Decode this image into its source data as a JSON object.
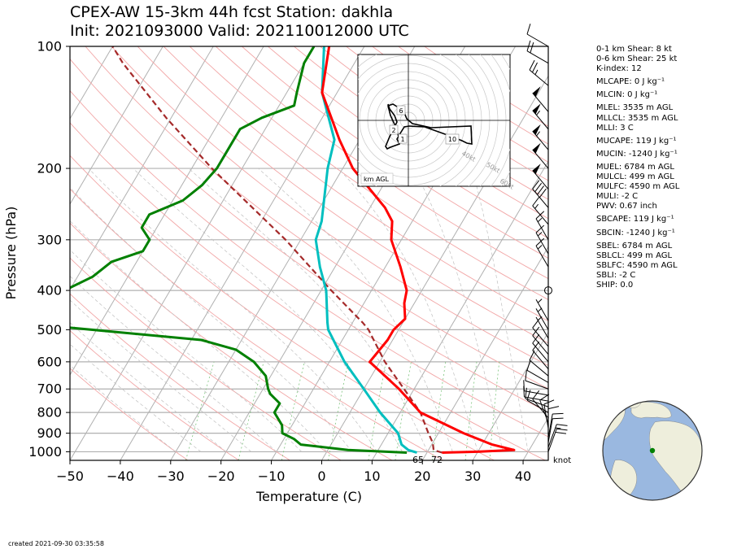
{
  "title_line1": "CPEX-AW 15-3km  44h fcst  Station: dakhla",
  "title_line2": "Init: 2021093000  Valid: 202110012000 UTC",
  "footer": "created 2021-09-30 03:35:58",
  "chart_data": {
    "type": "line",
    "subtype": "skew-t log-p diagram",
    "xlabel": "Temperature (C)",
    "ylabel": "Pressure (hPa)",
    "xlim": [
      -50,
      45
    ],
    "ylim": [
      1050,
      100
    ],
    "yscale": "log",
    "grid": true,
    "x_ticks": [
      -50,
      -40,
      -30,
      -20,
      -10,
      0,
      10,
      20,
      30,
      40
    ],
    "x_tick_labels": [
      "−50",
      "−40",
      "−30",
      "−20",
      "−10",
      "0",
      "10",
      "20",
      "30",
      "40"
    ],
    "y_ticks": [
      100,
      200,
      300,
      400,
      500,
      600,
      700,
      800,
      900,
      1000
    ],
    "series": [
      {
        "color": "#ff0000",
        "points": [
          [
            1005,
            23
          ],
          [
            1000,
            30
          ],
          [
            990,
            37
          ],
          [
            960,
            32
          ],
          [
            900,
            25
          ],
          [
            800,
            14
          ],
          [
            700,
            7
          ],
          [
            600,
            -2
          ],
          [
            530,
            -1
          ],
          [
            500,
            -1
          ],
          [
            470,
            0
          ],
          [
            430,
            -2
          ],
          [
            400,
            -3
          ],
          [
            350,
            -7
          ],
          [
            300,
            -12
          ],
          [
            270,
            -14
          ],
          [
            250,
            -17
          ],
          [
            200,
            -28
          ],
          [
            170,
            -34
          ],
          [
            130,
            -43
          ],
          [
            100,
            -47
          ]
        ]
      },
      {
        "color": "#00bfbf",
        "points": [
          [
            1005,
            18
          ],
          [
            990,
            16
          ],
          [
            960,
            14
          ],
          [
            900,
            12
          ],
          [
            800,
            6
          ],
          [
            700,
            0
          ],
          [
            600,
            -7
          ],
          [
            500,
            -14
          ],
          [
            480,
            -15
          ],
          [
            400,
            -19
          ],
          [
            350,
            -23
          ],
          [
            300,
            -27
          ],
          [
            270,
            -28
          ],
          [
            200,
            -33
          ],
          [
            170,
            -35
          ],
          [
            130,
            -43
          ],
          [
            100,
            -48
          ]
        ]
      },
      {
        "color": "#008000",
        "points": [
          [
            1005,
            16
          ],
          [
            990,
            4
          ],
          [
            960,
            -6
          ],
          [
            930,
            -8
          ],
          [
            900,
            -11
          ],
          [
            860,
            -12
          ],
          [
            800,
            -15
          ],
          [
            760,
            -15
          ],
          [
            720,
            -18
          ],
          [
            700,
            -19
          ],
          [
            650,
            -21
          ],
          [
            600,
            -25
          ],
          [
            560,
            -30
          ],
          [
            530,
            -38
          ],
          [
            480,
            -77
          ],
          [
            460,
            -70
          ],
          [
            430,
            -70
          ],
          [
            400,
            -71
          ],
          [
            370,
            -67
          ],
          [
            340,
            -65
          ],
          [
            320,
            -60
          ],
          [
            300,
            -60
          ],
          [
            280,
            -63
          ],
          [
            260,
            -63
          ],
          [
            240,
            -58
          ],
          [
            220,
            -56
          ],
          [
            200,
            -55
          ],
          [
            180,
            -55
          ],
          [
            160,
            -55
          ],
          [
            150,
            -52
          ],
          [
            140,
            -47
          ],
          [
            130,
            -48
          ],
          [
            110,
            -50
          ],
          [
            100,
            -50
          ]
        ]
      },
      {
        "color": "#a52a2a",
        "dashed": true,
        "points": [
          [
            1005,
            23
          ],
          [
            990,
            21
          ],
          [
            950,
            20
          ],
          [
            900,
            18
          ],
          [
            800,
            14
          ],
          [
            700,
            8
          ],
          [
            600,
            1
          ],
          [
            500,
            -6
          ],
          [
            480,
            -8
          ],
          [
            400,
            -18
          ],
          [
            300,
            -33
          ],
          [
            200,
            -56
          ],
          [
            150,
            -71
          ],
          [
            110,
            -86
          ],
          [
            100,
            -90
          ]
        ]
      }
    ],
    "surface_labels": [
      {
        "text": "65",
        "color": "#008000"
      },
      {
        "text": "72",
        "color": "#ff0000"
      }
    ],
    "hodograph": {
      "label": "km AGL",
      "ring_labels": [
        "40kt",
        "50kt",
        "60kt"
      ],
      "height_labels": [
        "6",
        "2",
        "1",
        "10"
      ]
    },
    "wind_units": "knot",
    "winds": [
      {
        "p": 1000,
        "dir": 20,
        "spd": 18
      },
      {
        "p": 975,
        "dir": 20,
        "spd": 15
      },
      {
        "p": 950,
        "dir": 10,
        "spd": 10
      },
      {
        "p": 925,
        "dir": 10,
        "spd": 10
      },
      {
        "p": 900,
        "dir": 360,
        "spd": 8
      },
      {
        "p": 875,
        "dir": 350,
        "spd": 8
      },
      {
        "p": 850,
        "dir": 340,
        "spd": 8
      },
      {
        "p": 825,
        "dir": 320,
        "spd": 9
      },
      {
        "p": 800,
        "dir": 300,
        "spd": 10
      },
      {
        "p": 775,
        "dir": 290,
        "spd": 10
      },
      {
        "p": 750,
        "dir": 280,
        "spd": 10
      },
      {
        "p": 725,
        "dir": 280,
        "spd": 10
      },
      {
        "p": 700,
        "dir": 290,
        "spd": 10
      },
      {
        "p": 675,
        "dir": 300,
        "spd": 10
      },
      {
        "p": 650,
        "dir": 310,
        "spd": 10
      },
      {
        "p": 625,
        "dir": 320,
        "spd": 10
      },
      {
        "p": 600,
        "dir": 320,
        "spd": 10
      },
      {
        "p": 575,
        "dir": 320,
        "spd": 10
      },
      {
        "p": 550,
        "dir": 320,
        "spd": 10
      },
      {
        "p": 525,
        "dir": 330,
        "spd": 5
      },
      {
        "p": 500,
        "dir": 330,
        "spd": 5
      },
      {
        "p": 475,
        "dir": 330,
        "spd": 5
      },
      {
        "p": 400,
        "dir": 0,
        "spd": 0
      },
      {
        "p": 350,
        "dir": 330,
        "spd": 15
      },
      {
        "p": 325,
        "dir": 330,
        "spd": 15
      },
      {
        "p": 300,
        "dir": 330,
        "spd": 15
      },
      {
        "p": 275,
        "dir": 320,
        "spd": 15
      },
      {
        "p": 250,
        "dir": 320,
        "spd": 40
      },
      {
        "p": 225,
        "dir": 320,
        "spd": 50
      },
      {
        "p": 200,
        "dir": 320,
        "spd": 50
      },
      {
        "p": 180,
        "dir": 320,
        "spd": 55
      },
      {
        "p": 160,
        "dir": 320,
        "spd": 55
      },
      {
        "p": 145,
        "dir": 320,
        "spd": 50
      },
      {
        "p": 125,
        "dir": 310,
        "spd": 25
      },
      {
        "p": 110,
        "dir": 300,
        "spd": 20
      },
      {
        "p": 100,
        "dir": 300,
        "spd": 10
      }
    ]
  },
  "indices": [
    {
      "text": "0-1 km Shear: 8 kt",
      "gap": false
    },
    {
      "text": "0-6 km Shear: 25 kt",
      "gap": false
    },
    {
      "text": "K-index: 12",
      "gap": false
    },
    {
      "text": "MLCAPE: 0 J kg⁻¹",
      "gap": true
    },
    {
      "text": "MLCIN: 0 J kg⁻¹",
      "gap": true
    },
    {
      "text": "MLEL: 3535 m AGL",
      "gap": true
    },
    {
      "text": "MLLCL: 3535 m AGL",
      "gap": false
    },
    {
      "text": "MLLI: 3 C",
      "gap": false
    },
    {
      "text": "MUCAPE: 119 J kg⁻¹",
      "gap": true
    },
    {
      "text": "MUCIN: -1240 J kg⁻¹",
      "gap": true
    },
    {
      "text": "MUEL: 6784 m AGL",
      "gap": true
    },
    {
      "text": "MULCL: 499 m AGL",
      "gap": false
    },
    {
      "text": "MULFC: 4590 m AGL",
      "gap": false
    },
    {
      "text": "MULI: -2 C",
      "gap": false
    },
    {
      "text": "PWV: 0.67 inch",
      "gap": false
    },
    {
      "text": "SBCAPE: 119 J kg⁻¹",
      "gap": true
    },
    {
      "text": "SBCIN: -1240 J kg⁻¹",
      "gap": true
    },
    {
      "text": "SBEL: 6784 m AGL",
      "gap": true
    },
    {
      "text": "SBLCL: 499 m AGL",
      "gap": false
    },
    {
      "text": "SBLFC: 4590 m AGL",
      "gap": false
    },
    {
      "text": "SBLI: -2 C",
      "gap": false
    },
    {
      "text": "SHIP: 0.0",
      "gap": false
    }
  ],
  "colors": {
    "temperature": "#ff0000",
    "dewpoint": "#008000",
    "virtual_temperature": "#00bfbf",
    "parcel": "#a52a2a",
    "ocean": "#9ab8e0",
    "land": "#eeeedc",
    "station_marker": "#008000"
  }
}
